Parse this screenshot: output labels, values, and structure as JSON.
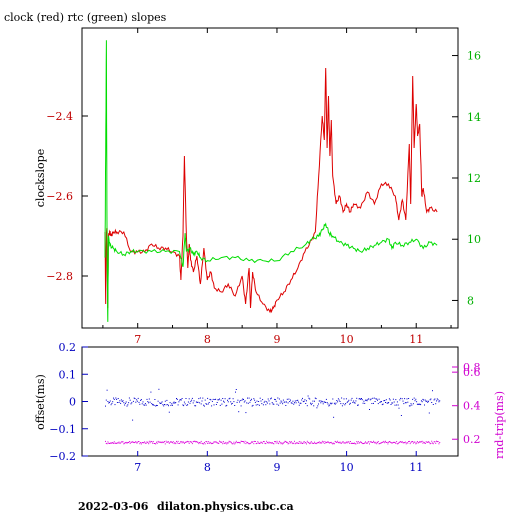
{
  "header": {
    "title": "clock (red) rtc (green) slopes",
    "footer_date": "2022-03-06",
    "footer_host": "dilaton.physics.ubc.ca"
  },
  "colors": {
    "clock": "#dd0000",
    "rtc": "#00dd00",
    "offset": "#0000cc",
    "rndtrip": "#dd00dd",
    "axis_blue": "#0000c0",
    "axis_magenta": "#d000d0"
  },
  "chart_data": [
    {
      "type": "line",
      "title": "clock (red) rtc (green) slopes",
      "xlabel": "",
      "ylabel": "clockslope",
      "y2label": "",
      "xlim": [
        6.2,
        11.6
      ],
      "ylim": [
        -2.93,
        -2.18
      ],
      "y2lim": [
        7.1,
        16.9
      ],
      "xticks": [
        7,
        8,
        9,
        10,
        11
      ],
      "yticks": [
        -2.4,
        -2.6,
        -2.8
      ],
      "y2ticks": [
        8,
        10,
        12,
        14,
        16
      ],
      "series": [
        {
          "axis": "left",
          "x": [
            6.53,
            6.54,
            6.55,
            6.56,
            6.57,
            6.58,
            6.6,
            6.62,
            6.65,
            6.7,
            6.8,
            6.9,
            7.0,
            7.1,
            7.2,
            7.3,
            7.4,
            7.5,
            7.6,
            7.62,
            7.65,
            7.67,
            7.7,
            7.72,
            7.74,
            7.76,
            7.8,
            7.85,
            7.9,
            7.95,
            8.0,
            8.05,
            8.1,
            8.2,
            8.3,
            8.4,
            8.5,
            8.55,
            8.6,
            8.62,
            8.65,
            8.7,
            8.8,
            8.9,
            8.95,
            9.0,
            9.1,
            9.2,
            9.3,
            9.4,
            9.5,
            9.55,
            9.6,
            9.65,
            9.68,
            9.7,
            9.72,
            9.74,
            9.76,
            9.78,
            9.8,
            9.85,
            9.9,
            9.95,
            10.0,
            10.05,
            10.1,
            10.2,
            10.3,
            10.4,
            10.5,
            10.6,
            10.7,
            10.75,
            10.8,
            10.85,
            10.9,
            10.92,
            10.95,
            10.97,
            11.0,
            11.02,
            11.05,
            11.08,
            11.1,
            11.15,
            11.2,
            11.3
          ],
          "y": [
            -2.69,
            -2.87,
            -2.69,
            -2.68,
            -2.88,
            -2.7,
            -2.69,
            -2.7,
            -2.69,
            -2.69,
            -2.69,
            -2.74,
            -2.74,
            -2.74,
            -2.72,
            -2.73,
            -2.73,
            -2.74,
            -2.75,
            -2.81,
            -2.7,
            -2.5,
            -2.7,
            -2.78,
            -2.72,
            -2.76,
            -2.79,
            -2.75,
            -2.82,
            -2.73,
            -2.81,
            -2.79,
            -2.83,
            -2.84,
            -2.82,
            -2.85,
            -2.8,
            -2.87,
            -2.78,
            -2.88,
            -2.79,
            -2.84,
            -2.87,
            -2.89,
            -2.88,
            -2.86,
            -2.84,
            -2.81,
            -2.78,
            -2.74,
            -2.71,
            -2.69,
            -2.55,
            -2.4,
            -2.46,
            -2.28,
            -2.48,
            -2.35,
            -2.5,
            -2.41,
            -2.55,
            -2.62,
            -2.6,
            -2.64,
            -2.62,
            -2.64,
            -2.62,
            -2.63,
            -2.59,
            -2.62,
            -2.57,
            -2.57,
            -2.6,
            -2.66,
            -2.61,
            -2.66,
            -2.47,
            -2.62,
            -2.3,
            -2.48,
            -2.37,
            -2.45,
            -2.42,
            -2.6,
            -2.58,
            -2.64,
            -2.63,
            -2.64
          ]
        },
        {
          "axis": "right",
          "x": [
            6.53,
            6.54,
            6.55,
            6.56,
            6.57,
            6.58,
            6.6,
            6.65,
            6.7,
            6.8,
            6.9,
            7.0,
            7.2,
            7.4,
            7.6,
            7.65,
            7.68,
            7.7,
            7.75,
            7.8,
            7.85,
            7.9,
            8.0,
            8.2,
            8.4,
            8.6,
            8.8,
            9.0,
            9.2,
            9.4,
            9.5,
            9.6,
            9.65,
            9.7,
            9.75,
            9.8,
            9.9,
            10.0,
            10.1,
            10.2,
            10.3,
            10.4,
            10.5,
            10.6,
            10.65,
            10.7,
            10.8,
            10.9,
            11.0,
            11.1,
            11.2,
            11.3
          ],
          "y": [
            9.4,
            12.8,
            16.5,
            9.8,
            7.3,
            10.1,
            9.8,
            9.7,
            9.6,
            9.5,
            9.6,
            9.6,
            9.6,
            9.6,
            9.6,
            9.1,
            10.2,
            9.6,
            9.7,
            9.5,
            9.6,
            9.4,
            9.3,
            9.4,
            9.4,
            9.3,
            9.3,
            9.3,
            9.6,
            9.8,
            10.0,
            10.1,
            10.3,
            10.5,
            10.2,
            10.1,
            9.9,
            9.8,
            9.7,
            9.6,
            9.7,
            9.8,
            9.9,
            10.0,
            9.7,
            9.9,
            9.8,
            9.9,
            10.0,
            9.7,
            9.9,
            9.8
          ]
        }
      ]
    },
    {
      "type": "scatter",
      "title": "",
      "xlabel": "",
      "ylabel": "offset(ms)",
      "y2label": "rnd-trip(ms)",
      "xlim": [
        6.2,
        11.6
      ],
      "ylim": [
        -0.2,
        0.2
      ],
      "y2lim": [
        0.1,
        0.75
      ],
      "xticks": [
        7,
        8,
        9,
        10,
        11
      ],
      "yticks": [
        0.2,
        0.1,
        0,
        -0.1,
        -0.2
      ],
      "y2ticks": [
        0.2,
        0.4,
        0.6
      ],
      "y2ticks_extra": [
        0.8
      ],
      "series": [
        {
          "axis": "left",
          "spread": 0.015,
          "level": 0.0
        },
        {
          "axis": "right",
          "spread": 0.008,
          "level": 0.183
        }
      ]
    }
  ]
}
